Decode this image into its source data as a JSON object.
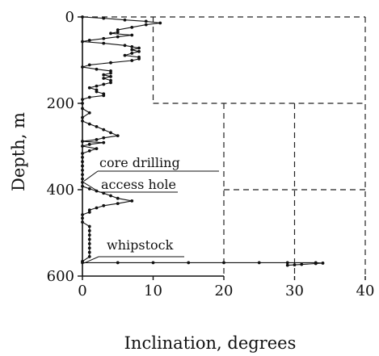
{
  "chart_data": {
    "type": "line",
    "xlabel": "Inclination, degrees",
    "ylabel": "Depth, m",
    "xlim": [
      0,
      40
    ],
    "ylim": [
      0,
      600
    ],
    "y_inverted": true,
    "xticks": [
      0,
      10,
      20,
      30,
      40
    ],
    "yticks": [
      0,
      200,
      400,
      600
    ],
    "grid": "dashed, partial",
    "annotations": [
      {
        "text": "core drilling",
        "points_to_depth": 380
      },
      {
        "text": "access hole",
        "points_to_depth": 380
      },
      {
        "text": "whipstock",
        "points_to_depth": 570
      }
    ],
    "series": [
      {
        "marker": "dot",
        "points": [
          [
            0,
            0
          ],
          [
            3,
            3
          ],
          [
            6,
            7
          ],
          [
            9,
            10
          ],
          [
            11,
            14
          ],
          [
            9,
            18
          ],
          [
            7,
            24
          ],
          [
            5,
            30
          ],
          [
            5,
            35
          ],
          [
            4,
            38
          ],
          [
            7,
            42
          ],
          [
            5,
            46
          ],
          [
            3,
            50
          ],
          [
            1,
            54
          ],
          [
            0,
            57
          ],
          [
            3,
            61
          ],
          [
            6,
            66
          ],
          [
            7,
            69
          ],
          [
            8,
            72
          ],
          [
            7,
            76
          ],
          [
            8,
            80
          ],
          [
            7,
            84
          ],
          [
            6,
            89
          ],
          [
            8,
            93
          ],
          [
            8,
            97
          ],
          [
            7,
            101
          ],
          [
            4,
            106
          ],
          [
            1,
            111
          ],
          [
            0,
            116
          ],
          [
            2,
            121
          ],
          [
            4,
            125
          ],
          [
            4,
            130
          ],
          [
            3,
            134
          ],
          [
            4,
            138
          ],
          [
            3,
            142
          ],
          [
            4,
            147
          ],
          [
            4,
            152
          ],
          [
            3,
            156
          ],
          [
            2,
            160
          ],
          [
            1,
            164
          ],
          [
            2,
            169
          ],
          [
            2,
            173
          ],
          [
            3,
            178
          ],
          [
            3,
            182
          ],
          [
            1,
            186
          ],
          [
            0,
            191
          ],
          [
            0,
            200
          ],
          [
            0,
            212
          ],
          [
            1,
            222
          ],
          [
            0,
            233
          ],
          [
            0,
            241
          ],
          [
            1,
            248
          ],
          [
            2,
            254
          ],
          [
            3,
            261
          ],
          [
            4,
            268
          ],
          [
            5,
            275
          ],
          [
            3,
            280
          ],
          [
            2,
            284
          ],
          [
            0,
            288
          ],
          [
            3,
            291
          ],
          [
            1,
            295
          ],
          [
            0,
            299
          ],
          [
            2,
            305
          ],
          [
            1,
            310
          ],
          [
            0,
            316
          ],
          [
            0,
            325
          ],
          [
            0,
            335
          ],
          [
            0,
            345
          ],
          [
            0,
            355
          ],
          [
            0,
            365
          ],
          [
            0,
            375
          ],
          [
            0,
            383
          ],
          [
            0,
            392
          ],
          [
            1,
            398
          ],
          [
            2,
            403
          ],
          [
            3,
            408
          ],
          [
            4,
            414
          ],
          [
            5,
            420
          ],
          [
            7,
            426
          ],
          [
            5,
            432
          ],
          [
            3,
            437
          ],
          [
            2,
            442
          ],
          [
            1,
            447
          ],
          [
            1,
            452
          ],
          [
            0,
            458
          ],
          [
            0,
            466
          ],
          [
            0,
            475
          ],
          [
            1,
            485
          ],
          [
            1,
            495
          ],
          [
            1,
            505
          ],
          [
            1,
            515
          ],
          [
            1,
            525
          ],
          [
            1,
            535
          ],
          [
            1,
            545
          ],
          [
            1,
            555
          ],
          [
            0,
            566
          ],
          [
            0,
            569
          ],
          [
            5,
            569
          ],
          [
            10,
            569
          ],
          [
            15,
            569
          ],
          [
            20,
            569
          ],
          [
            25,
            569
          ],
          [
            29,
            569
          ],
          [
            33,
            569
          ],
          [
            34,
            570
          ],
          [
            33,
            571
          ],
          [
            31,
            573
          ],
          [
            30,
            574
          ],
          [
            29,
            575
          ]
        ]
      }
    ]
  }
}
